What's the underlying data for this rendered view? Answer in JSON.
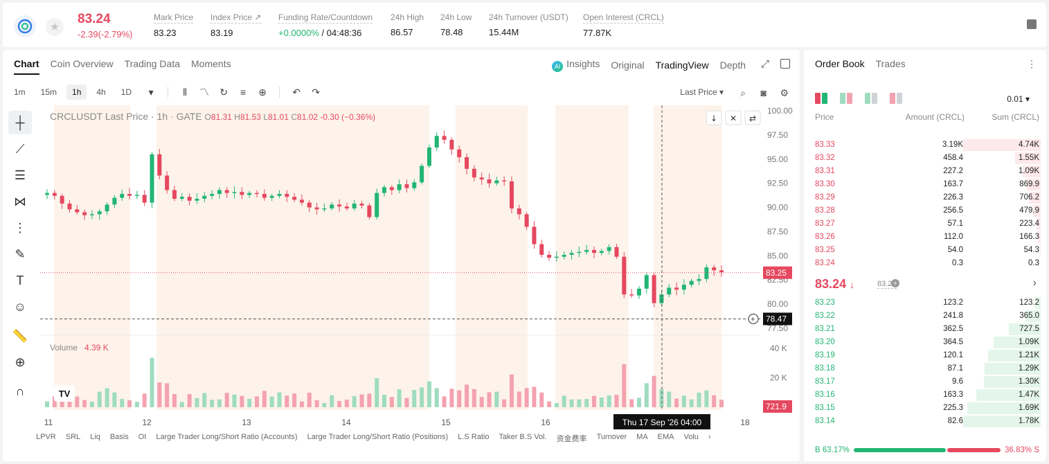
{
  "header": {
    "last_price": "83.24",
    "change": "-2.39(-2.79%)",
    "stats": [
      {
        "label": "Mark Price",
        "value": "83.23"
      },
      {
        "label": "Index Price ↗",
        "value": "83.19"
      },
      {
        "label": "Funding Rate/Countdown",
        "value_rate": "+0.0000%",
        "value_countdown": "/ 04:48:36"
      },
      {
        "label": "24h High",
        "value": "86.57"
      },
      {
        "label": "24h Low",
        "value": "78.48"
      },
      {
        "label": "24h Turnover (USDT)",
        "value": "15.44M"
      },
      {
        "label": "Open Interest (CRCL)",
        "value": "77.87K"
      }
    ]
  },
  "chart_panel": {
    "tabs": [
      "Chart",
      "Coin Overview",
      "Trading Data",
      "Moments"
    ],
    "view_tabs": [
      "Insights",
      "Original",
      "TradingView",
      "Depth"
    ],
    "ai_badge": "AI",
    "intervals": [
      "1m",
      "15m",
      "1h",
      "4h",
      "1D"
    ],
    "active_interval": "1h",
    "price_source": "Last Price",
    "legend": {
      "symbol": "CRCLUSDT Last Price · 1h · GATE",
      "o_label": "O",
      "o": "81.31",
      "h_label": "H",
      "h": "81.53",
      "l_label": "L",
      "l": "81.01",
      "c_label": "C",
      "c": "81.02",
      "chg": "-0.30 (−0.36%)"
    },
    "volume_label": "Volume",
    "volume_value": "4.39 K",
    "price_axis": [
      "100.00",
      "97.50",
      "95.00",
      "92.50",
      "90.00",
      "87.50",
      "85.00",
      "82.50",
      "80.00",
      "77.50"
    ],
    "volume_axis": [
      "40 K",
      "20 K"
    ],
    "time_axis": [
      "11",
      "12",
      "13",
      "14",
      "15",
      "16",
      "18"
    ],
    "last_price_tag": "83.25",
    "cursor_price_tag": "78.47",
    "volume_tag": "721.9",
    "cursor_time_tag": "Thu 17 Sep '26   04:00",
    "indicators": [
      "LPVR",
      "SRL",
      "Liq",
      "Basis",
      "OI",
      "Large Trader Long/Short Ratio (Accounts)",
      "Large Trader Long/Short Ratio (Positions)",
      "L.S Ratio",
      "Taker B.S Vol.",
      "资金费率",
      "Turnover",
      "MA",
      "EMA",
      "Volu"
    ],
    "colors": {
      "up": "#22b573",
      "down": "#e5485f",
      "up_vol": "#9fdcbf",
      "down_vol": "#f4a2b0",
      "session": "#fdf3ea"
    }
  },
  "chart_data": {
    "type": "candlestick",
    "symbol": "CRCLUSDT",
    "interval": "1h",
    "ylim": [
      77.5,
      100.0
    ],
    "close_path": [
      91.5,
      91.2,
      90.4,
      89.8,
      89.5,
      89.2,
      89.3,
      89.6,
      90.3,
      91.0,
      91.4,
      91.2,
      91.3,
      90.5,
      95.5,
      93.3,
      91.8,
      90.9,
      91.1,
      90.7,
      90.9,
      91.2,
      91.4,
      91.8,
      91.5,
      91.6,
      91.3,
      91.5,
      91.4,
      91.0,
      91.2,
      91.4,
      91.1,
      90.8,
      90.5,
      90.0,
      89.8,
      89.9,
      90.3,
      90.1,
      89.9,
      90.4,
      90.2,
      89.0,
      91.5,
      92.1,
      91.8,
      92.4,
      92.0,
      92.6,
      94.3,
      96.2,
      97.4,
      97.0,
      96.0,
      95.2,
      94.0,
      93.1,
      92.9,
      92.5,
      92.8,
      92.7,
      89.9,
      89.3,
      88.0,
      86.2,
      85.1,
      84.8,
      84.9,
      85.1,
      85.3,
      85.4,
      85.6,
      85.3,
      85.5,
      85.9,
      84.9,
      81.0,
      80.9,
      81.6,
      83.0,
      80.1,
      81.0,
      81.7,
      81.5,
      82.0,
      82.4,
      82.6,
      83.8,
      83.5,
      83.3
    ],
    "volume_ylim": [
      0,
      50000
    ],
    "volume_ticks": [
      "20 K",
      "40 K"
    ]
  },
  "order_book": {
    "tabs": [
      "Order Book",
      "Trades"
    ],
    "tick_size": "0.01",
    "headers": [
      "Price",
      "Amount (CRCL)",
      "Sum (CRCL)"
    ],
    "asks": [
      {
        "price": "83.33",
        "amount": "3.19K",
        "sum": "4.74K",
        "depth": 1.0
      },
      {
        "price": "83.32",
        "amount": "458.4",
        "sum": "1.55K",
        "depth": 0.33
      },
      {
        "price": "83.31",
        "amount": "227.2",
        "sum": "1.09K",
        "depth": 0.23
      },
      {
        "price": "83.30",
        "amount": "163.7",
        "sum": "869.9",
        "depth": 0.18
      },
      {
        "price": "83.29",
        "amount": "226.3",
        "sum": "706.2",
        "depth": 0.15
      },
      {
        "price": "83.28",
        "amount": "256.5",
        "sum": "479.9",
        "depth": 0.1
      },
      {
        "price": "83.27",
        "amount": "57.1",
        "sum": "223.4",
        "depth": 0.05
      },
      {
        "price": "83.26",
        "amount": "112.0",
        "sum": "166.3",
        "depth": 0.035
      },
      {
        "price": "83.25",
        "amount": "54.0",
        "sum": "54.3",
        "depth": 0.012
      },
      {
        "price": "83.24",
        "amount": "0.3",
        "sum": "0.3",
        "depth": 0.0
      }
    ],
    "mid_price": "83.24",
    "mid_arrow": "↓",
    "mid_mark": "83.23",
    "bids": [
      {
        "price": "83.23",
        "amount": "123.2",
        "sum": "123.2",
        "depth": 0.07
      },
      {
        "price": "83.22",
        "amount": "241.8",
        "sum": "365.0",
        "depth": 0.2
      },
      {
        "price": "83.21",
        "amount": "362.5",
        "sum": "727.5",
        "depth": 0.41
      },
      {
        "price": "83.20",
        "amount": "364.5",
        "sum": "1.09K",
        "depth": 0.61
      },
      {
        "price": "83.19",
        "amount": "120.1",
        "sum": "1.21K",
        "depth": 0.68
      },
      {
        "price": "83.18",
        "amount": "87.1",
        "sum": "1.29K",
        "depth": 0.72
      },
      {
        "price": "83.17",
        "amount": "9.6",
        "sum": "1.30K",
        "depth": 0.73
      },
      {
        "price": "83.16",
        "amount": "163.3",
        "sum": "1.47K",
        "depth": 0.83
      },
      {
        "price": "83.15",
        "amount": "225.3",
        "sum": "1.69K",
        "depth": 0.95
      },
      {
        "price": "83.14",
        "amount": "82.6",
        "sum": "1.78K",
        "depth": 1.0
      }
    ],
    "buy_label": "B 63.17%",
    "sell_label": "36.83% S",
    "buy_ratio": 0.6317
  }
}
